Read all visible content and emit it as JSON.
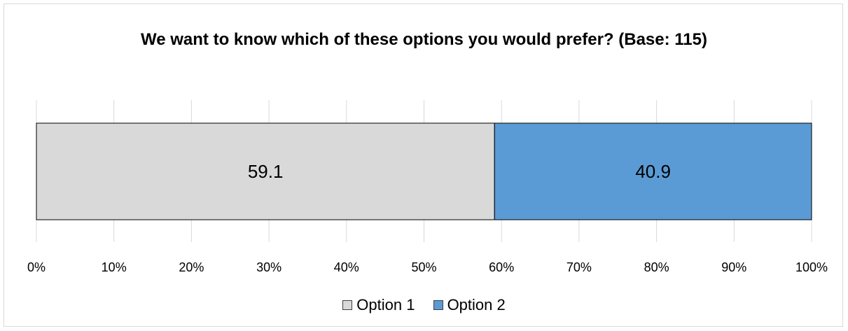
{
  "chart_data": {
    "type": "bar",
    "orientation": "horizontal",
    "stacked": true,
    "percent": true,
    "title": "We want to know which of these options you would prefer? (Base: 115)",
    "categories": [
      ""
    ],
    "series": [
      {
        "name": "Option 1",
        "values": [
          59.1
        ],
        "color": "#d9d9d9"
      },
      {
        "name": "Option 2",
        "values": [
          40.9
        ],
        "color": "#5b9bd5"
      }
    ],
    "xlim": [
      0,
      100
    ],
    "xticks": [
      "0%",
      "10%",
      "20%",
      "30%",
      "40%",
      "50%",
      "60%",
      "70%",
      "80%",
      "90%",
      "100%"
    ],
    "grid": "vertical",
    "legend": "bottom"
  }
}
